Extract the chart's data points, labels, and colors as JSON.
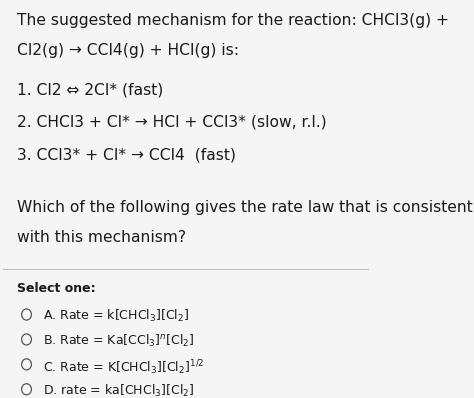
{
  "bg_color": "#f5f5f5",
  "title_lines": [
    "The suggested mechanism for the reaction: CHCl3(g) +",
    "Cl2(g) → CCl4(g) + HCl(g) is:"
  ],
  "steps": [
    "1. Cl2 ⇔ 2Cl* (fast)",
    "2. CHCl3 + Cl* → HCl + CCl3* (slow, r.l.)",
    "3. CCl3* + Cl* → CCl4  (fast)"
  ],
  "question_lines": [
    "Which of the following gives the rate law that is consistent",
    "with this mechanism?"
  ],
  "select_label": "Select one:",
  "text_color": "#1a1a1a",
  "circle_color": "#555555",
  "separator_color": "#bbbbbb",
  "font_size_title": 11.2,
  "font_size_step": 11.2,
  "font_size_question": 11.2,
  "font_size_select": 9.0,
  "font_size_option": 9.0
}
